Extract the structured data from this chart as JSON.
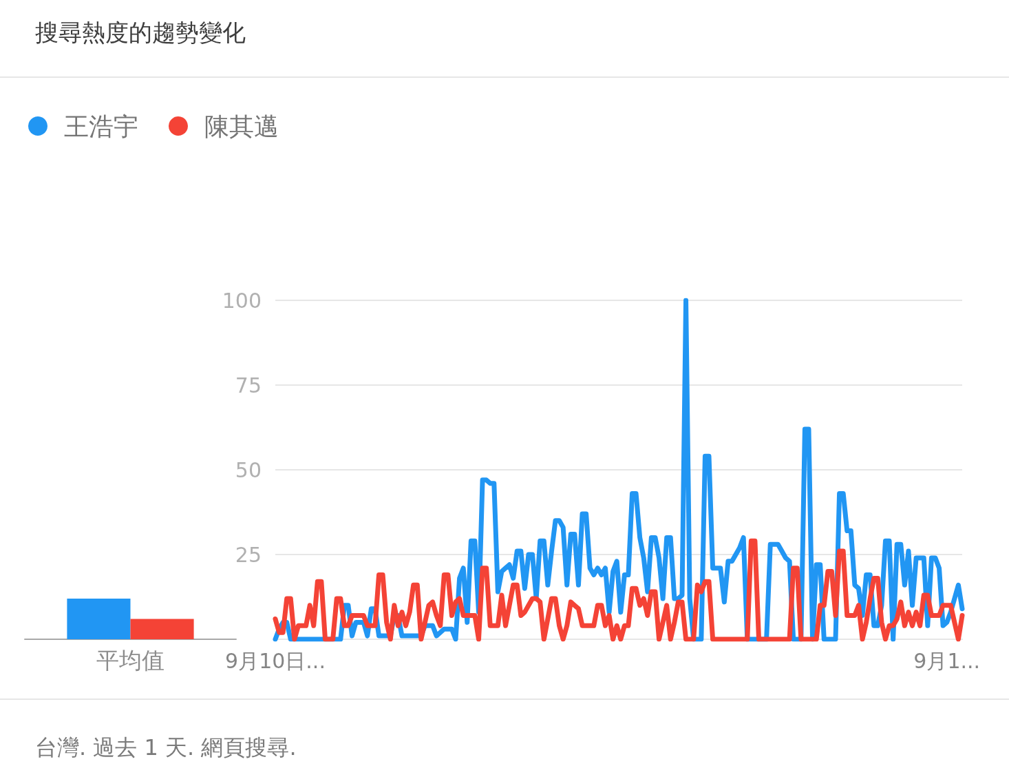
{
  "chart_data": [
    {
      "type": "bar",
      "title": "搜尋熱度的趨勢變化",
      "categories": [
        "平均值"
      ],
      "series": [
        {
          "color": "#2196f3",
          "values": [
            12
          ]
        },
        {
          "color": "#f44336",
          "values": [
            6
          ]
        }
      ],
      "ylim": [
        0,
        100
      ],
      "tick_labels": "x"
    },
    {
      "type": "line",
      "annotations": [
        "台灣. 過去 1 天. 網頁搜尋."
      ],
      "legend": "top left",
      "ylim": [
        0,
        100
      ],
      "yticks": [
        25,
        50,
        75,
        100
      ],
      "grid": "y",
      "marker": "none",
      "line_style": "solid",
      "categories": [
        "9月10日...",
        null,
        null,
        null,
        null,
        null,
        null,
        null,
        null,
        null,
        null,
        null,
        null,
        null,
        null,
        null,
        null,
        null,
        null,
        null,
        null,
        null,
        null,
        null,
        null,
        null,
        null,
        null,
        null,
        null,
        null,
        null,
        null,
        null,
        null,
        null,
        null,
        null,
        null,
        null,
        null,
        null,
        null,
        null,
        null,
        null,
        null,
        null,
        null,
        null,
        null,
        null,
        null,
        null,
        null,
        null,
        null,
        null,
        null,
        null,
        null,
        null,
        null,
        null,
        null,
        null,
        null,
        null,
        null,
        null,
        null,
        null,
        null,
        null,
        null,
        null,
        null,
        null,
        null,
        null,
        null,
        null,
        null,
        null,
        null,
        null,
        null,
        null,
        null,
        null,
        null,
        null,
        null,
        null,
        null,
        null,
        null,
        null,
        null,
        null,
        null,
        null,
        null,
        null,
        null,
        null,
        null,
        null,
        null,
        null,
        null,
        null,
        null,
        null,
        null,
        null,
        null,
        null,
        null,
        null,
        null,
        null,
        null,
        null,
        null,
        null,
        null,
        null,
        null,
        null,
        null,
        null,
        null,
        null,
        null,
        null,
        null,
        null,
        null,
        null,
        null,
        null,
        null,
        null,
        null,
        null,
        null,
        null,
        null,
        null,
        null,
        null,
        null,
        null,
        null,
        null,
        null,
        null,
        null,
        null,
        null,
        null,
        null,
        null,
        null,
        null,
        null,
        null,
        null,
        null,
        null,
        null,
        null,
        null,
        null,
        "9月1...",
        null,
        null,
        null,
        null
      ],
      "series": [
        {
          "name": "王浩宇",
          "color": "#2196f3",
          "values": [
            0,
            3,
            5,
            5,
            0,
            0,
            0,
            0,
            0,
            0,
            0,
            0,
            0,
            0,
            0,
            0,
            0,
            0,
            10,
            10,
            1,
            5,
            5,
            5,
            1,
            9,
            9,
            1,
            1,
            1,
            1,
            7,
            7,
            1,
            1,
            1,
            1,
            1,
            1,
            4,
            4,
            4,
            1,
            2,
            3,
            3,
            3,
            0,
            18,
            21,
            5,
            29,
            29,
            8,
            47,
            47,
            46,
            46,
            14,
            20,
            21,
            22,
            18,
            26,
            26,
            15,
            25,
            25,
            12,
            29,
            29,
            16,
            26,
            35,
            35,
            33,
            16,
            31,
            31,
            16,
            37,
            37,
            21,
            19,
            21,
            19,
            21,
            8,
            20,
            23,
            8,
            19,
            19,
            43,
            43,
            30,
            24,
            14,
            30,
            30,
            24,
            12,
            30,
            30,
            12,
            12,
            13,
            100,
            12,
            0,
            0,
            0,
            54,
            54,
            21,
            21,
            21,
            11,
            23,
            23,
            25,
            27,
            30,
            0,
            0,
            0,
            0,
            0,
            0,
            28,
            28,
            28,
            26,
            24,
            23,
            0,
            0,
            0,
            62,
            62,
            0,
            22,
            22,
            0,
            0,
            0,
            0,
            43,
            43,
            32,
            32,
            16,
            15,
            7,
            19,
            19,
            4,
            4,
            10,
            29,
            29,
            0,
            28,
            28,
            16,
            26,
            10,
            24,
            24,
            24,
            4,
            24,
            24,
            21,
            4,
            5,
            8,
            12,
            16,
            9
          ]
        },
        {
          "name": "陳其邁",
          "color": "#f44336",
          "values": [
            6,
            2,
            2,
            12,
            12,
            0,
            4,
            4,
            4,
            10,
            4,
            17,
            17,
            0,
            0,
            0,
            12,
            12,
            4,
            4,
            7,
            7,
            7,
            7,
            4,
            4,
            4,
            19,
            19,
            5,
            0,
            10,
            4,
            8,
            4,
            8,
            16,
            16,
            0,
            5,
            10,
            11,
            7,
            4,
            19,
            19,
            7,
            11,
            12,
            7,
            7,
            7,
            7,
            0,
            21,
            21,
            4,
            4,
            4,
            13,
            4,
            10,
            16,
            16,
            7,
            8,
            10,
            12,
            12,
            11,
            0,
            6,
            12,
            12,
            4,
            0,
            4,
            11,
            10,
            9,
            4,
            4,
            4,
            4,
            10,
            10,
            4,
            7,
            0,
            4,
            0,
            4,
            4,
            15,
            15,
            10,
            12,
            7,
            14,
            14,
            0,
            5,
            10,
            0,
            5,
            11,
            11,
            0,
            0,
            0,
            16,
            14,
            17,
            17,
            0,
            0,
            0,
            0,
            0,
            0,
            0,
            0,
            0,
            0,
            29,
            29,
            0,
            0,
            0,
            0,
            0,
            0,
            0,
            0,
            0,
            21,
            21,
            0,
            0,
            0,
            0,
            0,
            10,
            10,
            20,
            20,
            7,
            26,
            26,
            7,
            7,
            7,
            10,
            0,
            5,
            12,
            18,
            18,
            5,
            0,
            4,
            4,
            6,
            11,
            4,
            8,
            4,
            8,
            4,
            13,
            13,
            7,
            7,
            7,
            10,
            10,
            10,
            5,
            0,
            7
          ]
        }
      ]
    }
  ]
}
